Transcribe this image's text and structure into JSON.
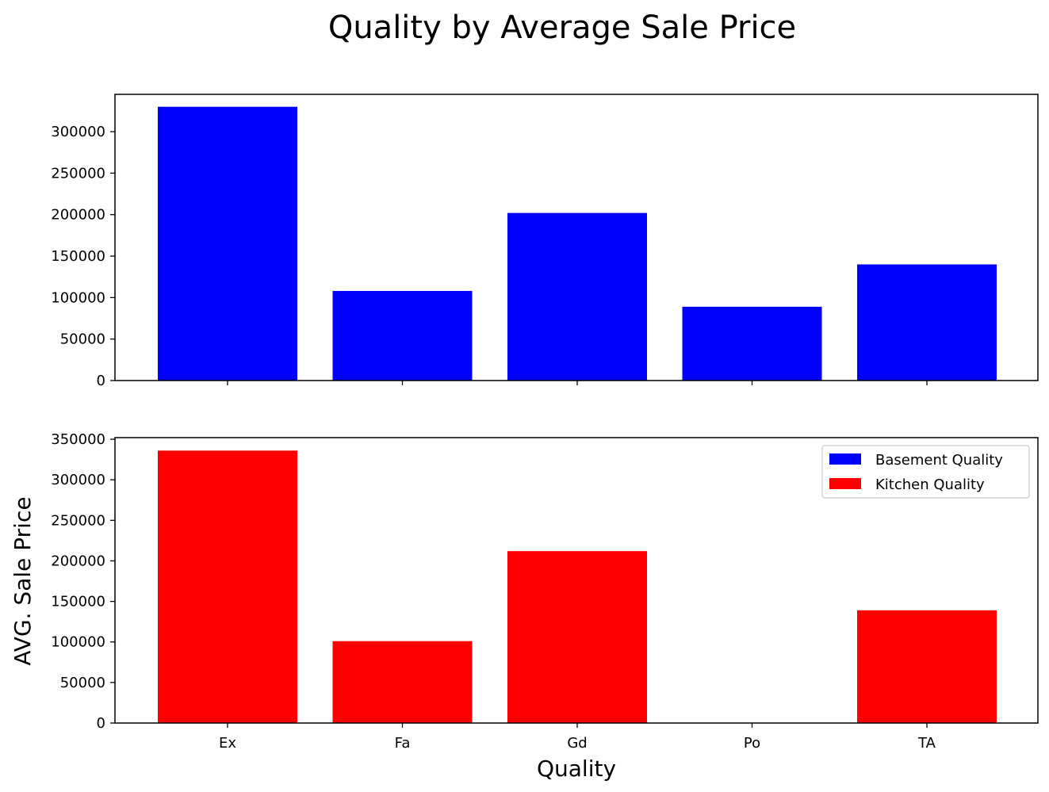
{
  "chart_data": {
    "type": "bar",
    "title": "Quality by Average Sale Price",
    "xlabel": "Quality",
    "ylabel": "AVG. Sale Price",
    "categories": [
      "Ex",
      "Fa",
      "Gd",
      "Po",
      "TA"
    ],
    "colors": {
      "basement": "#0000ff",
      "kitchen": "#ff0000"
    },
    "legend": {
      "placement": "upper-right",
      "subplot": "bottom"
    },
    "subplots": [
      {
        "series": {
          "name": "Basement Quality",
          "values": [
            330000,
            108000,
            202000,
            89000,
            140000
          ]
        },
        "ylim": [
          0,
          345000
        ],
        "yticks": [
          0,
          50000,
          100000,
          150000,
          200000,
          250000,
          300000
        ],
        "color": "#0000ff"
      },
      {
        "series": {
          "name": "Kitchen Quality",
          "values": [
            336000,
            101000,
            212000,
            0,
            139000
          ]
        },
        "ylim": [
          0,
          352000
        ],
        "yticks": [
          0,
          50000,
          100000,
          150000,
          200000,
          250000,
          300000,
          350000
        ],
        "color": "#ff0000"
      }
    ],
    "grid": false
  }
}
